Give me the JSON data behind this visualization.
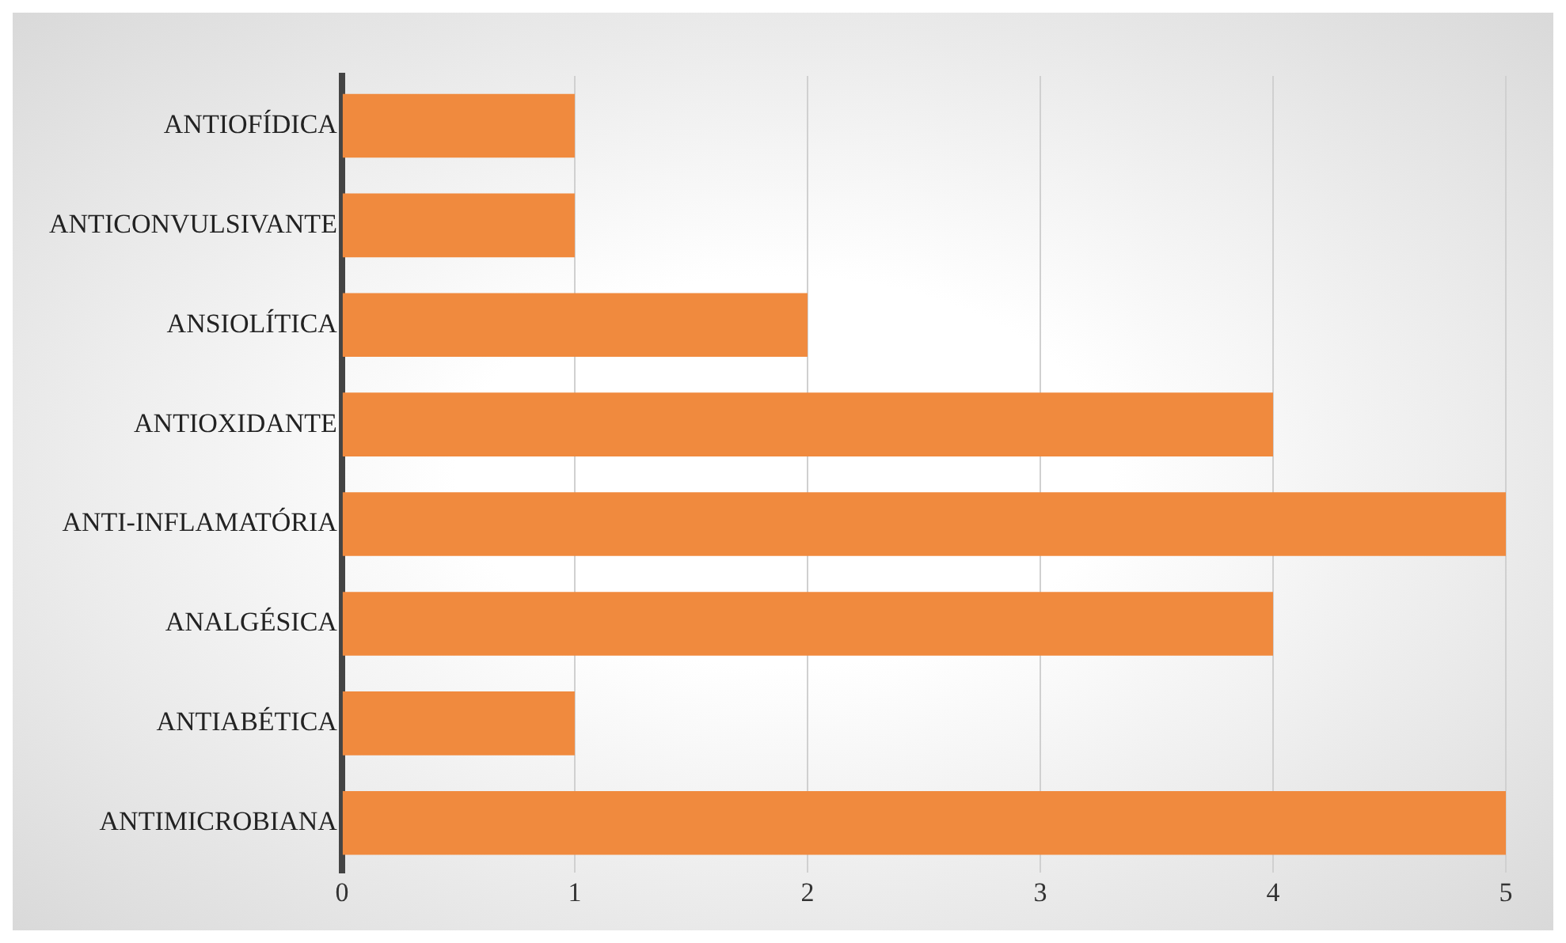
{
  "chart_data": {
    "type": "bar",
    "orientation": "horizontal",
    "categories": [
      "ANTIOFÍDICA",
      "ANTICONVULSIVANTE",
      "ANSIOLÍTICA",
      "ANTIOXIDANTE",
      "ANTI-INFLAMATÓRIA",
      "ANALGÉSICA",
      "ANTIABÉTICA",
      "ANTIMICROBIANA"
    ],
    "values": [
      1,
      1,
      2,
      4,
      5,
      4,
      1,
      5
    ],
    "color": "#f08a3e",
    "xlim": [
      0,
      5
    ],
    "xticks": [
      0,
      1,
      2,
      3,
      4,
      5
    ],
    "grid": "x",
    "legend": false
  }
}
